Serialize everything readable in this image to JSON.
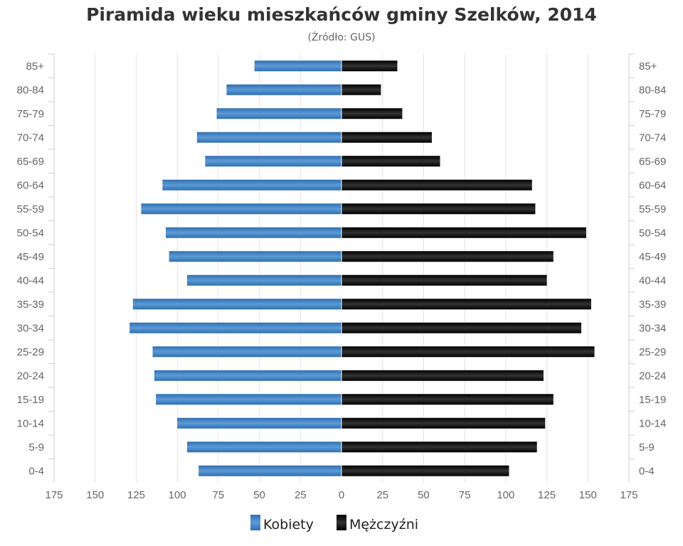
{
  "chart_data": {
    "type": "bar",
    "title": "Piramida wieku mieszkańców gminy Szelków, 2014",
    "subtitle": "(Źródło: GUS)",
    "categories": [
      "85+",
      "80-84",
      "75-79",
      "70-74",
      "65-69",
      "60-64",
      "55-59",
      "50-54",
      "45-49",
      "40-44",
      "35-39",
      "30-34",
      "25-29",
      "20-24",
      "15-19",
      "10-14",
      "5-9",
      "0-4"
    ],
    "series": [
      {
        "name": "Kobiety",
        "color": "#3d7ec0",
        "values": [
          53,
          70,
          76,
          88,
          83,
          109,
          122,
          107,
          105,
          94,
          127,
          129,
          115,
          114,
          113,
          100,
          94,
          87
        ]
      },
      {
        "name": "Mężczyźni",
        "color": "#111111",
        "values": [
          34,
          24,
          37,
          55,
          60,
          116,
          118,
          149,
          129,
          125,
          152,
          146,
          154,
          123,
          129,
          124,
          119,
          102
        ]
      }
    ],
    "xticks": [
      "175",
      "150",
      "125",
      "100",
      "75",
      "50",
      "25",
      "0",
      "25",
      "50",
      "75",
      "100",
      "125",
      "150",
      "175"
    ],
    "xlim": [
      -175,
      175
    ],
    "grid": true,
    "legend": "bottom"
  }
}
